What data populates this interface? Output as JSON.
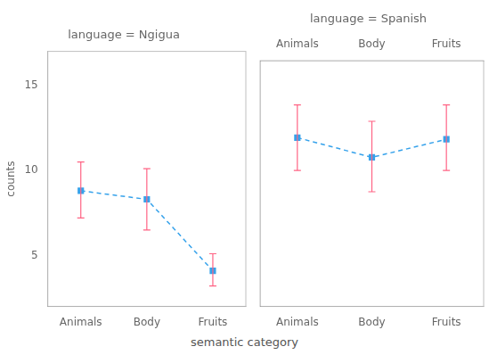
{
  "chart_data": [
    {
      "type": "line",
      "title": "language = Ngigua",
      "xlabel": "semantic category",
      "ylabel": "counts",
      "categories": [
        "Animals",
        "Body",
        "Fruits"
      ],
      "values": [
        8.8,
        8.3,
        4.1
      ],
      "ci_lower": [
        7.2,
        6.5,
        3.2
      ],
      "ci_upper": [
        10.5,
        10.1,
        5.1
      ],
      "ylim": [
        2,
        17
      ],
      "yticks": [
        5,
        10,
        15
      ],
      "grid": false,
      "line_style": "dashed",
      "marker": "square"
    },
    {
      "type": "line",
      "title": "language = Spanish",
      "categories": [
        "Animals",
        "Body",
        "Fruits"
      ],
      "values": [
        12.3,
        11.1,
        12.2
      ],
      "ci_lower": [
        10.3,
        9.0,
        10.3
      ],
      "ci_upper": [
        14.3,
        13.3,
        14.3
      ],
      "ylim": [
        2,
        17
      ],
      "yticks": [
        5,
        10,
        15
      ],
      "grid": false,
      "tick_labels": "x",
      "line_style": "dashed",
      "marker": "square"
    }
  ]
}
